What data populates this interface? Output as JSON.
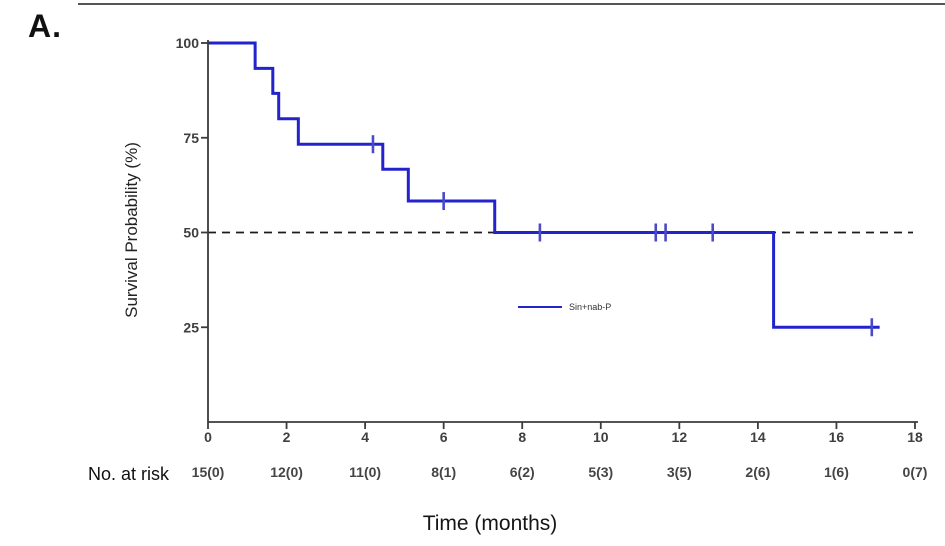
{
  "panel_label": "A.",
  "chart_data": {
    "type": "line",
    "subtype": "kaplan-meier-step-curve",
    "title": "",
    "xlabel": "Time (months)",
    "ylabel": "Survival Probability (%)",
    "xlim": [
      0,
      18
    ],
    "ylim": [
      0,
      100
    ],
    "xticks": [
      0,
      2,
      4,
      6,
      8,
      10,
      12,
      14,
      16,
      18
    ],
    "yticks": [
      100,
      75,
      50,
      25
    ],
    "grid": false,
    "legend_position": "inside-center",
    "reference_line": {
      "y": 50,
      "style": "dashed"
    },
    "series": [
      {
        "name": "Sin+nab-P",
        "steps": [
          [
            0,
            100
          ],
          [
            1.2,
            93.3
          ],
          [
            1.65,
            86.7
          ],
          [
            1.8,
            80
          ],
          [
            2.3,
            73.3
          ],
          [
            4.45,
            66.7
          ],
          [
            5.1,
            58.3
          ],
          [
            7.3,
            50
          ],
          [
            14.4,
            25
          ]
        ],
        "end_time": 17.1,
        "censor_marks": [
          [
            4.2,
            73.3
          ],
          [
            6.0,
            58.3
          ],
          [
            8.45,
            50
          ],
          [
            11.4,
            50
          ],
          [
            11.65,
            50
          ],
          [
            12.85,
            50
          ],
          [
            16.9,
            25
          ]
        ]
      }
    ],
    "risk_table": {
      "label": "No. at risk",
      "times": [
        0,
        2,
        4,
        6,
        8,
        10,
        12,
        14,
        16,
        18
      ],
      "values": [
        "15(0)",
        "12(0)",
        "11(0)",
        "8(1)",
        "6(2)",
        "5(3)",
        "3(5)",
        "2(6)",
        "1(6)",
        "0(7)"
      ]
    }
  },
  "colors": {
    "curve": "#2323cd",
    "censor": "#4a4ac8",
    "axis": "#3b3b3b",
    "tick_text": "#3f3f3f",
    "risk_text": "#454545",
    "dashed_line": "#1b1b1b",
    "top_border": "#555555"
  }
}
